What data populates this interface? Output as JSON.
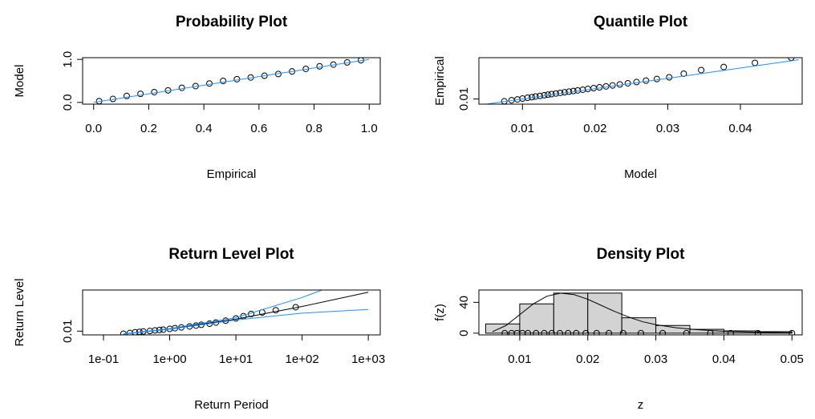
{
  "chart_data": [
    {
      "type": "scatter",
      "title": "Probability Plot",
      "xlabel": "Empirical",
      "ylabel": "Model",
      "xlim": [
        -0.04,
        1.04
      ],
      "ylim": [
        -0.04,
        1.04
      ],
      "xticks": [
        {
          "value": 0,
          "label": "0.0"
        },
        0.2,
        0.4,
        0.6,
        0.8,
        {
          "value": 1,
          "label": "1.0"
        }
      ],
      "yticks": [
        {
          "value": 0,
          "label": "0.0"
        },
        {
          "value": 1,
          "label": "1.0"
        }
      ],
      "series": [
        {
          "kind": "points",
          "color": "#000000",
          "x": [
            0.02,
            0.07,
            0.12,
            0.17,
            0.22,
            0.27,
            0.32,
            0.37,
            0.42,
            0.47,
            0.52,
            0.57,
            0.62,
            0.67,
            0.72,
            0.77,
            0.82,
            0.87,
            0.92,
            0.97
          ],
          "values": [
            0.03,
            0.08,
            0.15,
            0.2,
            0.24,
            0.28,
            0.34,
            0.38,
            0.44,
            0.5,
            0.54,
            0.58,
            0.62,
            0.66,
            0.72,
            0.78,
            0.84,
            0.88,
            0.93,
            0.98
          ]
        },
        {
          "kind": "line",
          "color": "#1e90ff",
          "x": [
            0,
            1
          ],
          "values": [
            0,
            1
          ]
        }
      ]
    },
    {
      "type": "scatter",
      "title": "Quantile Plot",
      "xlabel": "Model",
      "ylabel": "Empirical",
      "xlim": [
        0.004,
        0.0485
      ],
      "ylim": [
        0.005,
        0.05
      ],
      "xticks": [
        0.01,
        0.02,
        0.03,
        0.04
      ],
      "yticks": [
        0.01
      ],
      "series": [
        {
          "kind": "points",
          "color": "#000000",
          "x": [
            0.0075,
            0.0085,
            0.0093,
            0.01,
            0.0107,
            0.0113,
            0.0118,
            0.0124,
            0.013,
            0.0135,
            0.014,
            0.0146,
            0.0152,
            0.0158,
            0.0164,
            0.017,
            0.0176,
            0.0183,
            0.019,
            0.0198,
            0.0206,
            0.0215,
            0.0224,
            0.0234,
            0.0245,
            0.0257,
            0.027,
            0.0285,
            0.0302,
            0.0322,
            0.0346,
            0.0377,
            0.042,
            0.047
          ],
          "values": [
            0.0078,
            0.0088,
            0.0096,
            0.0104,
            0.0112,
            0.0118,
            0.0124,
            0.013,
            0.0136,
            0.0142,
            0.0147,
            0.0153,
            0.0159,
            0.0165,
            0.0171,
            0.0177,
            0.0183,
            0.019,
            0.0197,
            0.0205,
            0.0213,
            0.0222,
            0.0231,
            0.0241,
            0.0252,
            0.0264,
            0.0278,
            0.0293,
            0.031,
            0.0345,
            0.038,
            0.041,
            0.045,
            0.05
          ]
        },
        {
          "kind": "line",
          "color": "#1e90ff",
          "x": [
            0.005,
            0.048
          ],
          "values": [
            0.005,
            0.048
          ]
        }
      ]
    },
    {
      "type": "scatter",
      "log_x": true,
      "title": "Return Level Plot",
      "xlabel": "Return Period",
      "ylabel": "Return Level",
      "xlim": [
        0.0484,
        1514
      ],
      "ylim": [
        0.005,
        0.065
      ],
      "xticks": [
        {
          "value": 0.1,
          "label": "1e-01"
        },
        {
          "value": 1,
          "label": "1e+00"
        },
        {
          "value": 10,
          "label": "1e+01"
        },
        {
          "value": 100,
          "label": "1e+02"
        },
        {
          "value": 1000,
          "label": "1e+03"
        }
      ],
      "yticks": [
        0.01
      ],
      "series": [
        {
          "kind": "points",
          "color": "#000000",
          "x": [
            0.2,
            0.25,
            0.3,
            0.35,
            0.4,
            0.5,
            0.6,
            0.7,
            0.8,
            1,
            1.2,
            1.5,
            2,
            2.5,
            3,
            4,
            5,
            7,
            10,
            13,
            17,
            25,
            40,
            80
          ],
          "values": [
            0.0065,
            0.0075,
            0.0085,
            0.009,
            0.0095,
            0.0102,
            0.011,
            0.0115,
            0.012,
            0.013,
            0.014,
            0.015,
            0.0163,
            0.0175,
            0.0185,
            0.02,
            0.0215,
            0.024,
            0.027,
            0.03,
            0.033,
            0.035,
            0.038,
            0.042
          ]
        },
        {
          "kind": "line",
          "color": "#000000",
          "x": [
            0.2,
            1,
            10,
            100,
            1000
          ],
          "values": [
            0.0062,
            0.013,
            0.026,
            0.043,
            0.062
          ]
        },
        {
          "kind": "line",
          "color": "#1e90ff",
          "x": [
            0.2,
            1,
            10,
            100,
            200
          ],
          "values": [
            0.0065,
            0.0135,
            0.028,
            0.055,
            0.065
          ]
        },
        {
          "kind": "line",
          "color": "#1e90ff",
          "x": [
            0.2,
            1,
            10,
            100,
            1000
          ],
          "values": [
            0.006,
            0.0125,
            0.025,
            0.034,
            0.039
          ]
        }
      ]
    },
    {
      "type": "histogram",
      "title": "Density Plot",
      "xlabel": "z",
      "ylabel": "f(z)",
      "xlim": [
        0.004,
        0.0515
      ],
      "ylim": [
        -2.2,
        56
      ],
      "xticks": [
        0.01,
        0.02,
        0.03,
        0.04,
        0.05
      ],
      "yticks": [
        0,
        40
      ],
      "bins": [
        0.005,
        0.01,
        0.015,
        0.02,
        0.025,
        0.03,
        0.035,
        0.04,
        0.045,
        0.05
      ],
      "values": [
        12,
        38,
        52,
        52,
        20,
        10,
        5,
        3,
        2
      ],
      "color": "#d3d3d3",
      "series": [
        {
          "kind": "line",
          "color": "#000000",
          "x": [
            0.006,
            0.008,
            0.01,
            0.012,
            0.014,
            0.016,
            0.018,
            0.02,
            0.022,
            0.024,
            0.026,
            0.028,
            0.03,
            0.033,
            0.036,
            0.04,
            0.045,
            0.05
          ],
          "values": [
            2,
            10,
            24,
            38,
            48,
            52,
            50,
            44,
            36,
            28,
            21,
            15,
            11,
            7,
            4.5,
            2.5,
            1.2,
            0.5
          ]
        },
        {
          "kind": "points",
          "color": "#000000",
          "x": [
            0.0078,
            0.0088,
            0.0096,
            0.0104,
            0.0112,
            0.0124,
            0.0136,
            0.0147,
            0.0159,
            0.0171,
            0.0183,
            0.0197,
            0.0213,
            0.0231,
            0.0252,
            0.0278,
            0.031,
            0.0345,
            0.038,
            0.041,
            0.045,
            0.05
          ],
          "values": [
            0,
            0,
            0,
            0,
            0,
            0,
            0,
            0,
            0,
            0,
            0,
            0,
            0,
            0,
            0,
            0,
            0,
            0,
            0,
            0,
            0,
            0
          ]
        }
      ]
    }
  ]
}
